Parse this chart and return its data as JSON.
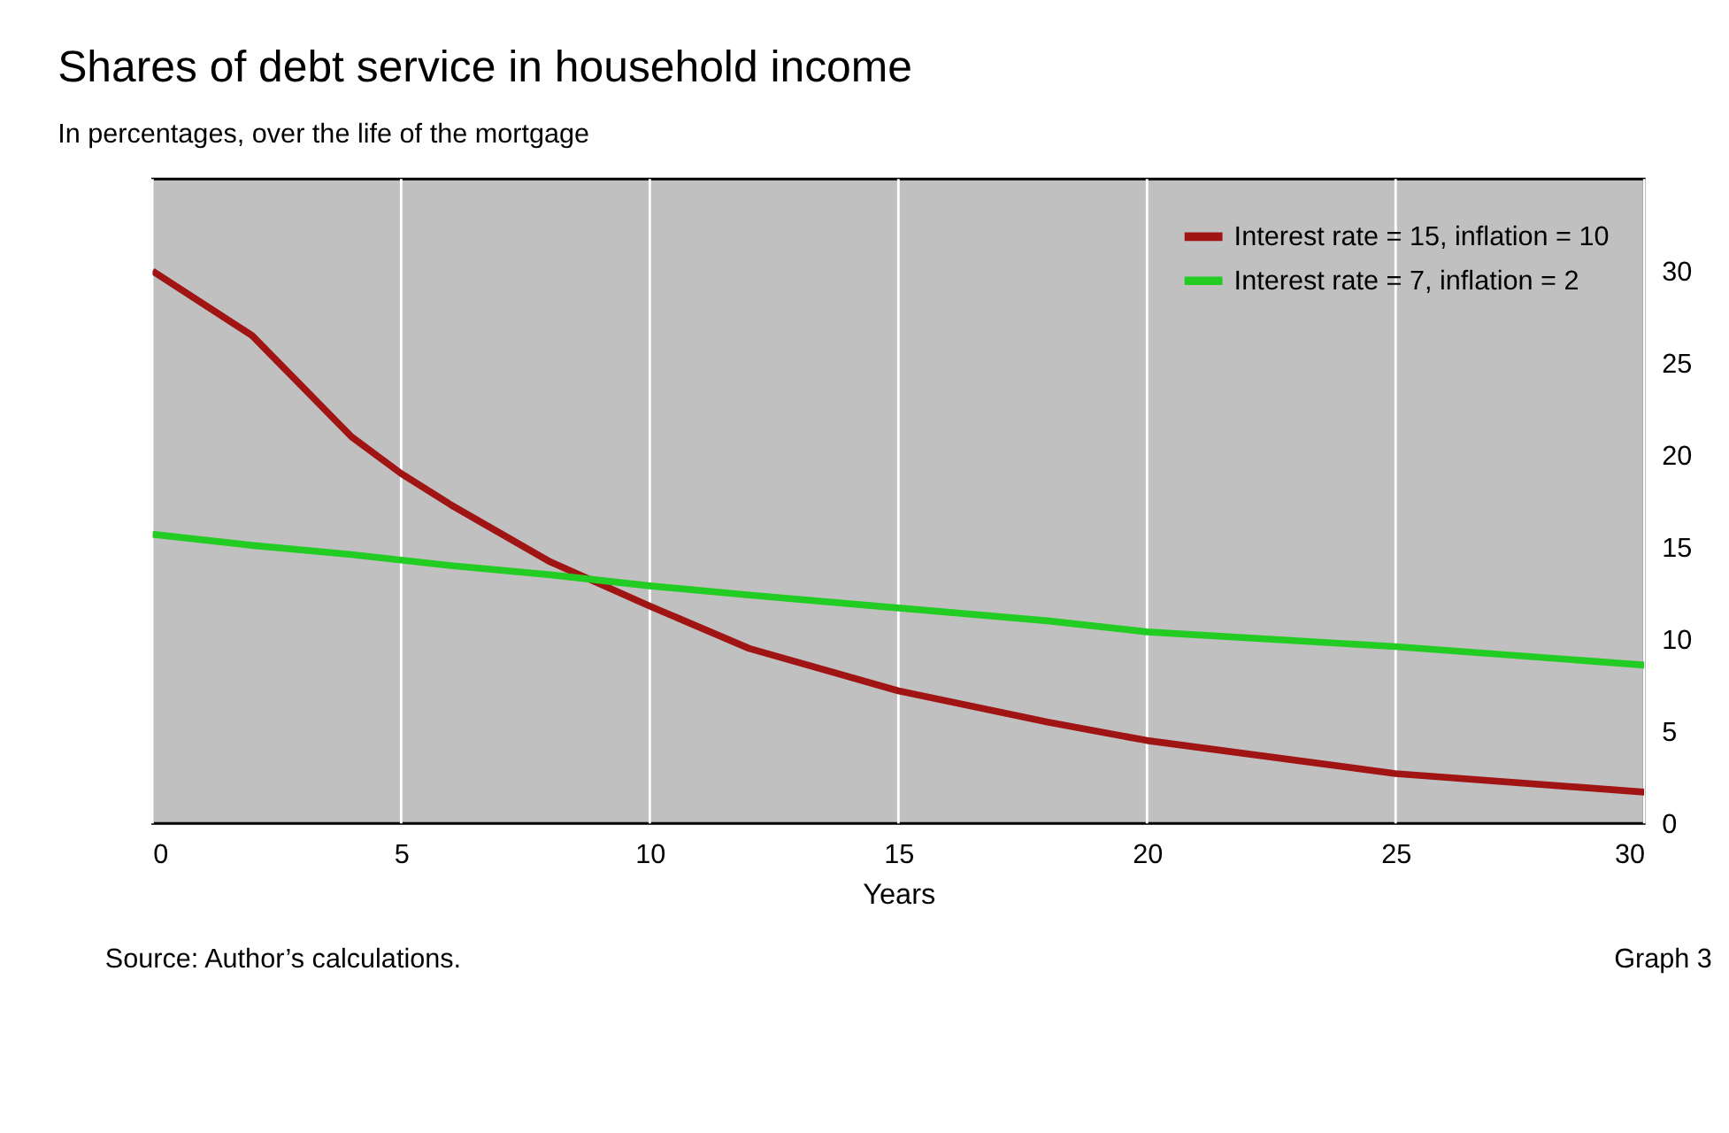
{
  "chart_data": {
    "type": "line",
    "title": "Shares of debt service in household income",
    "subtitle": "In percentages, over the life of the mortgage",
    "xlabel": "Years",
    "x": [
      0,
      2,
      4,
      5,
      6,
      8,
      10,
      12,
      15,
      18,
      20,
      25,
      30
    ],
    "series": [
      {
        "name": "Interest rate = 15, inflation = 10",
        "color": "#a01414",
        "values": [
          30,
          26.5,
          21,
          19,
          17.3,
          14.2,
          11.8,
          9.5,
          7.2,
          5.5,
          4.5,
          2.7,
          1.7
        ]
      },
      {
        "name": "Interest rate = 7, inflation = 2",
        "color": "#22cc22",
        "values": [
          15.7,
          15.1,
          14.6,
          14.3,
          14,
          13.5,
          12.9,
          12.4,
          11.7,
          11,
          10.4,
          9.6,
          8.6
        ]
      }
    ],
    "xlim": [
      0,
      30
    ],
    "xticks": [
      0,
      5,
      10,
      15,
      20,
      25,
      30
    ],
    "ylim": [
      0,
      35
    ],
    "yticks": [
      0,
      5,
      10,
      15,
      20,
      25,
      30
    ],
    "grid": "x",
    "legend": "top right",
    "marker": "none",
    "line_style": "solid",
    "annotations": [
      "Source: Author’s calculations.",
      "Graph 3"
    ]
  }
}
